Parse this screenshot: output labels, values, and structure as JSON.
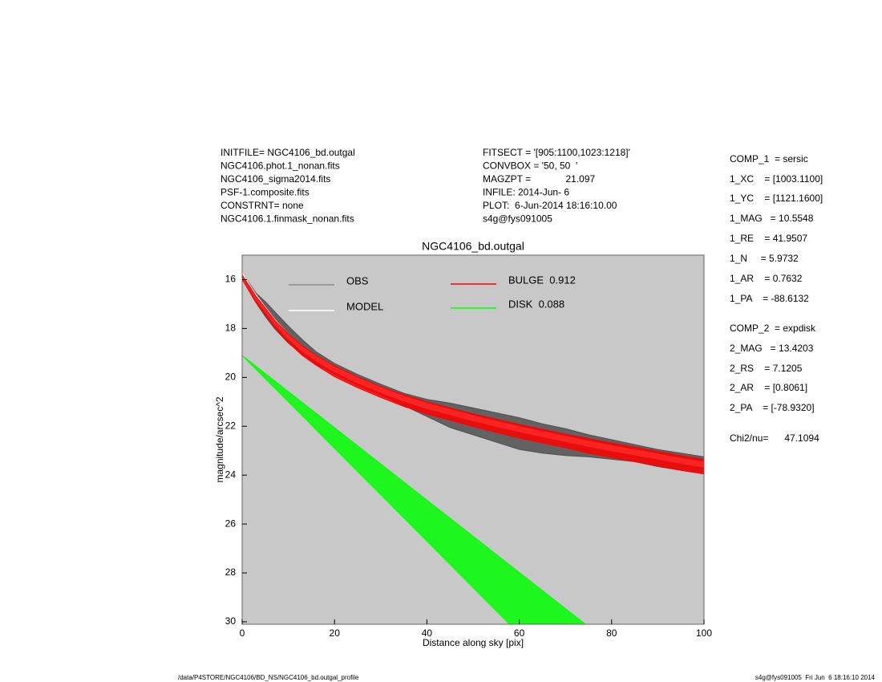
{
  "header": {
    "left": [
      "INITFILE= NGC4106_bd.outgal",
      "NGC4106.phot.1_nonan.fits",
      "NGC4106_sigma2014.fits",
      "PSF-1.composite.fits",
      "CONSTRNT= none",
      "NGC4106.1.finmask_nonan.fits"
    ],
    "middle": [
      "FITSECT = '[905:1100,1023:1218]'",
      "CONVBOX = '50, 50  '",
      "MAGZPT =             21.097",
      "INFILE: 2014-Jun- 6",
      "PLOT:  6-Jun-2014 18:16:10.00",
      "s4g@fys091005"
    ]
  },
  "params": [
    "COMP_1  = sersic",
    "1_XC    = [1003.1100]",
    "1_YC    = [1121.1600]",
    "1_MAG   = 10.5548",
    "1_RE    = 41.9507",
    "1_N     = 5.9732",
    "1_AR    = 0.7632",
    "1_PA    = -88.6132",
    "COMP_2  = expdisk",
    "2_MAG   = 13.4203",
    "2_RS    = 7.1205",
    "2_AR    = [0.8061]",
    "2_PA    = [-78.9320]",
    "Chi2/nu=      47.1094"
  ],
  "footer": {
    "left": "/data/P4STORE/NGC4106/BD_NS/NGC4106_bd.outgal_profile",
    "right": "s4g@fys091005  Fri Jun  6 18:16:10 2014"
  },
  "chart_data": {
    "type": "band",
    "title": "NGC4106_bd.outgal",
    "x_label": "Distance along sky [pix]",
    "y_label": "magnitude/arcsec^2",
    "xlim": [
      0,
      100
    ],
    "xticks": [
      0,
      20,
      40,
      60,
      80,
      100
    ],
    "ylim": [
      30.1,
      15
    ],
    "yticks": [
      16,
      18,
      20,
      22,
      24,
      26,
      28,
      30
    ],
    "background": "#c8c8c8",
    "series": [
      {
        "name": "OBS",
        "color": "#505050",
        "legend_color": "#8a8a8a",
        "x": [
          0,
          1,
          2,
          3,
          5,
          7,
          10,
          13,
          16,
          20,
          25,
          30,
          35,
          40,
          45,
          50,
          55,
          60,
          65,
          70,
          75,
          80,
          85,
          90,
          95,
          100
        ],
        "values": [
          15.85,
          16.15,
          16.45,
          16.75,
          17.2,
          17.65,
          18.25,
          18.75,
          19.2,
          19.65,
          20.1,
          20.5,
          20.9,
          21.25,
          21.55,
          21.8,
          22.05,
          22.3,
          22.5,
          22.65,
          22.8,
          22.95,
          23.1,
          23.3,
          23.45,
          23.6
        ],
        "errors": [
          0.12,
          0.15,
          0.18,
          0.2,
          0.3,
          0.35,
          0.35,
          0.3,
          0.25,
          0.22,
          0.22,
          0.22,
          0.25,
          0.35,
          0.5,
          0.55,
          0.6,
          0.65,
          0.6,
          0.55,
          0.45,
          0.4,
          0.35,
          0.35,
          0.35,
          0.35
        ]
      },
      {
        "name": "MODEL",
        "color": "#ffffff",
        "legend_color": "#ffffff",
        "x": [
          0,
          1,
          2,
          3,
          5,
          7,
          10,
          13,
          16,
          20,
          25,
          30,
          35,
          40,
          45,
          50,
          55,
          60,
          65,
          70,
          75,
          80,
          85,
          90,
          95,
          100
        ],
        "values": [
          15.82,
          16.12,
          16.42,
          16.72,
          17.22,
          17.72,
          18.32,
          18.82,
          19.22,
          19.67,
          20.12,
          20.52,
          20.87,
          21.17,
          21.42,
          21.67,
          21.9,
          22.12,
          22.32,
          22.52,
          22.72,
          22.9,
          23.07,
          23.24,
          23.42,
          23.57
        ],
        "errors": [
          0.1,
          0.1,
          0.1,
          0.1,
          0.1,
          0.1,
          0.1,
          0.1,
          0.1,
          0.1,
          0.1,
          0.1,
          0.1,
          0.1,
          0.1,
          0.1,
          0.1,
          0.1,
          0.1,
          0.1,
          0.1,
          0.1,
          0.1,
          0.1,
          0.1,
          0.1
        ]
      },
      {
        "name": "BULGE  0.912",
        "color": "#ff0000",
        "legend_color": "#ff0000",
        "x": [
          0,
          1,
          2,
          3,
          5,
          7,
          10,
          13,
          16,
          20,
          25,
          30,
          35,
          40,
          45,
          50,
          55,
          60,
          65,
          70,
          75,
          80,
          85,
          90,
          95,
          100
        ],
        "values": [
          15.9,
          16.2,
          16.5,
          16.8,
          17.3,
          17.8,
          18.4,
          18.9,
          19.3,
          19.75,
          20.2,
          20.6,
          20.95,
          21.25,
          21.5,
          21.75,
          21.98,
          22.2,
          22.4,
          22.6,
          22.8,
          22.98,
          23.15,
          23.32,
          23.5,
          23.65
        ],
        "errors": [
          0.1,
          0.1,
          0.12,
          0.12,
          0.15,
          0.15,
          0.18,
          0.2,
          0.2,
          0.22,
          0.22,
          0.22,
          0.24,
          0.25,
          0.25,
          0.26,
          0.27,
          0.28,
          0.28,
          0.28,
          0.3,
          0.3,
          0.3,
          0.3,
          0.3,
          0.3
        ]
      },
      {
        "name": "DISK  0.088",
        "color": "#00ff00",
        "legend_color": "#00ff00",
        "x": [
          0,
          10,
          20,
          30,
          40,
          50,
          60,
          70,
          75
        ],
        "values": [
          19.1,
          20.79,
          22.48,
          24.17,
          25.86,
          27.55,
          29.24,
          30.93,
          31.78
        ],
        "errors": [
          0,
          0.21,
          0.42,
          0.63,
          0.84,
          1.05,
          1.26,
          1.47,
          1.58
        ]
      }
    ]
  }
}
